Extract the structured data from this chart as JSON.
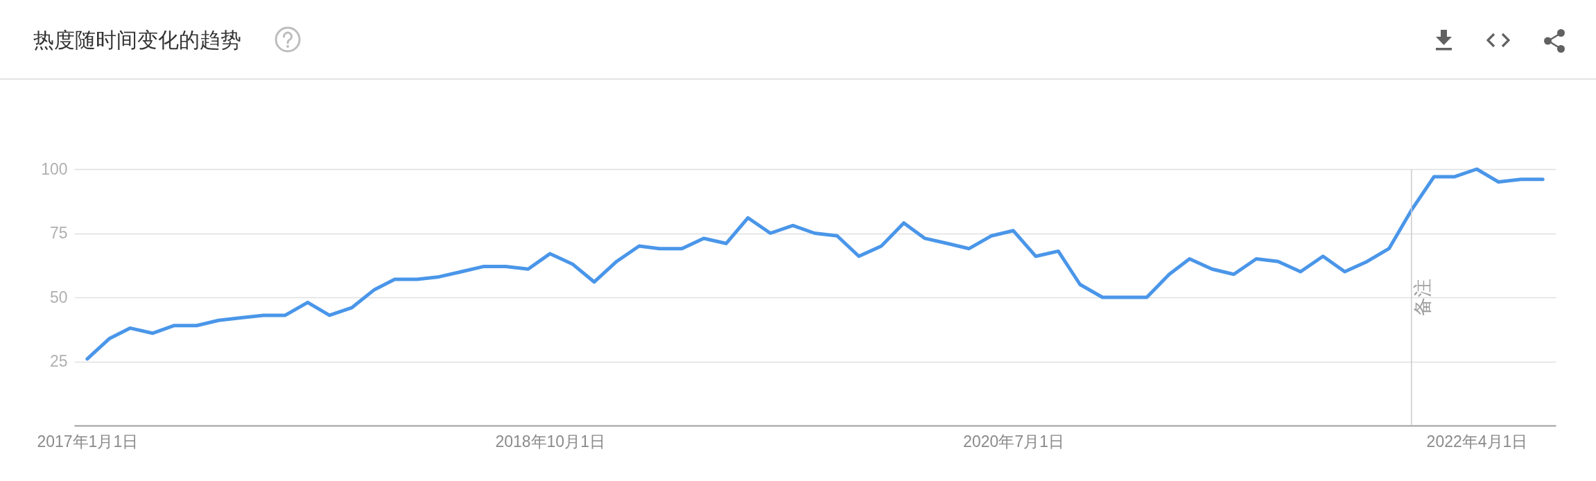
{
  "chart_data": {
    "type": "line",
    "title": "热度随时间变化的趋势",
    "x": [
      "2017-01",
      "2017-02",
      "2017-03",
      "2017-04",
      "2017-05",
      "2017-06",
      "2017-07",
      "2017-08",
      "2017-09",
      "2017-10",
      "2017-11",
      "2017-12",
      "2018-01",
      "2018-02",
      "2018-03",
      "2018-04",
      "2018-05",
      "2018-06",
      "2018-07",
      "2018-08",
      "2018-09",
      "2018-10",
      "2018-11",
      "2018-12",
      "2019-01",
      "2019-02",
      "2019-03",
      "2019-04",
      "2019-05",
      "2019-06",
      "2019-07",
      "2019-08",
      "2019-09",
      "2019-10",
      "2019-11",
      "2019-12",
      "2020-01",
      "2020-02",
      "2020-03",
      "2020-04",
      "2020-05",
      "2020-06",
      "2020-07",
      "2020-08",
      "2020-09",
      "2020-10",
      "2020-11",
      "2020-12",
      "2021-01",
      "2021-02",
      "2021-03",
      "2021-04",
      "2021-05",
      "2021-06",
      "2021-07",
      "2021-08",
      "2021-09",
      "2021-10",
      "2021-11",
      "2021-12",
      "2022-01",
      "2022-02",
      "2022-03",
      "2022-04",
      "2022-05",
      "2022-06",
      "2022-07"
    ],
    "series": [
      {
        "color": "#4a96e9",
        "values": [
          26,
          34,
          38,
          36,
          39,
          39,
          41,
          42,
          43,
          43,
          48,
          43,
          46,
          53,
          57,
          57,
          58,
          60,
          62,
          62,
          61,
          67,
          63,
          56,
          64,
          70,
          69,
          69,
          73,
          71,
          81,
          75,
          78,
          75,
          74,
          66,
          70,
          79,
          73,
          71,
          69,
          74,
          76,
          66,
          68,
          55,
          50,
          50,
          50,
          59,
          65,
          61,
          59,
          65,
          64,
          60,
          66,
          60,
          64,
          69,
          84,
          97,
          97,
          100,
          95,
          96,
          96
        ]
      }
    ],
    "xlim": [
      "2016-12-14",
      "2022-07-19"
    ],
    "xticks": [
      {
        "value": "2017-01-01",
        "label": "2017年1月1日"
      },
      {
        "value": "2018-10-01",
        "label": "2018年10月1日"
      },
      {
        "value": "2020-07-01",
        "label": "2020年7月1日"
      },
      {
        "value": "2022-04-01",
        "label": "2022年4月1日"
      }
    ],
    "ylim": [
      0,
      100
    ],
    "yticks": [
      25,
      50,
      75,
      100
    ],
    "grid": "y",
    "ref_lines": [
      {
        "axis": "x",
        "value": "2022-01-01",
        "label": "备注",
        "color": "#cccccc"
      }
    ]
  }
}
